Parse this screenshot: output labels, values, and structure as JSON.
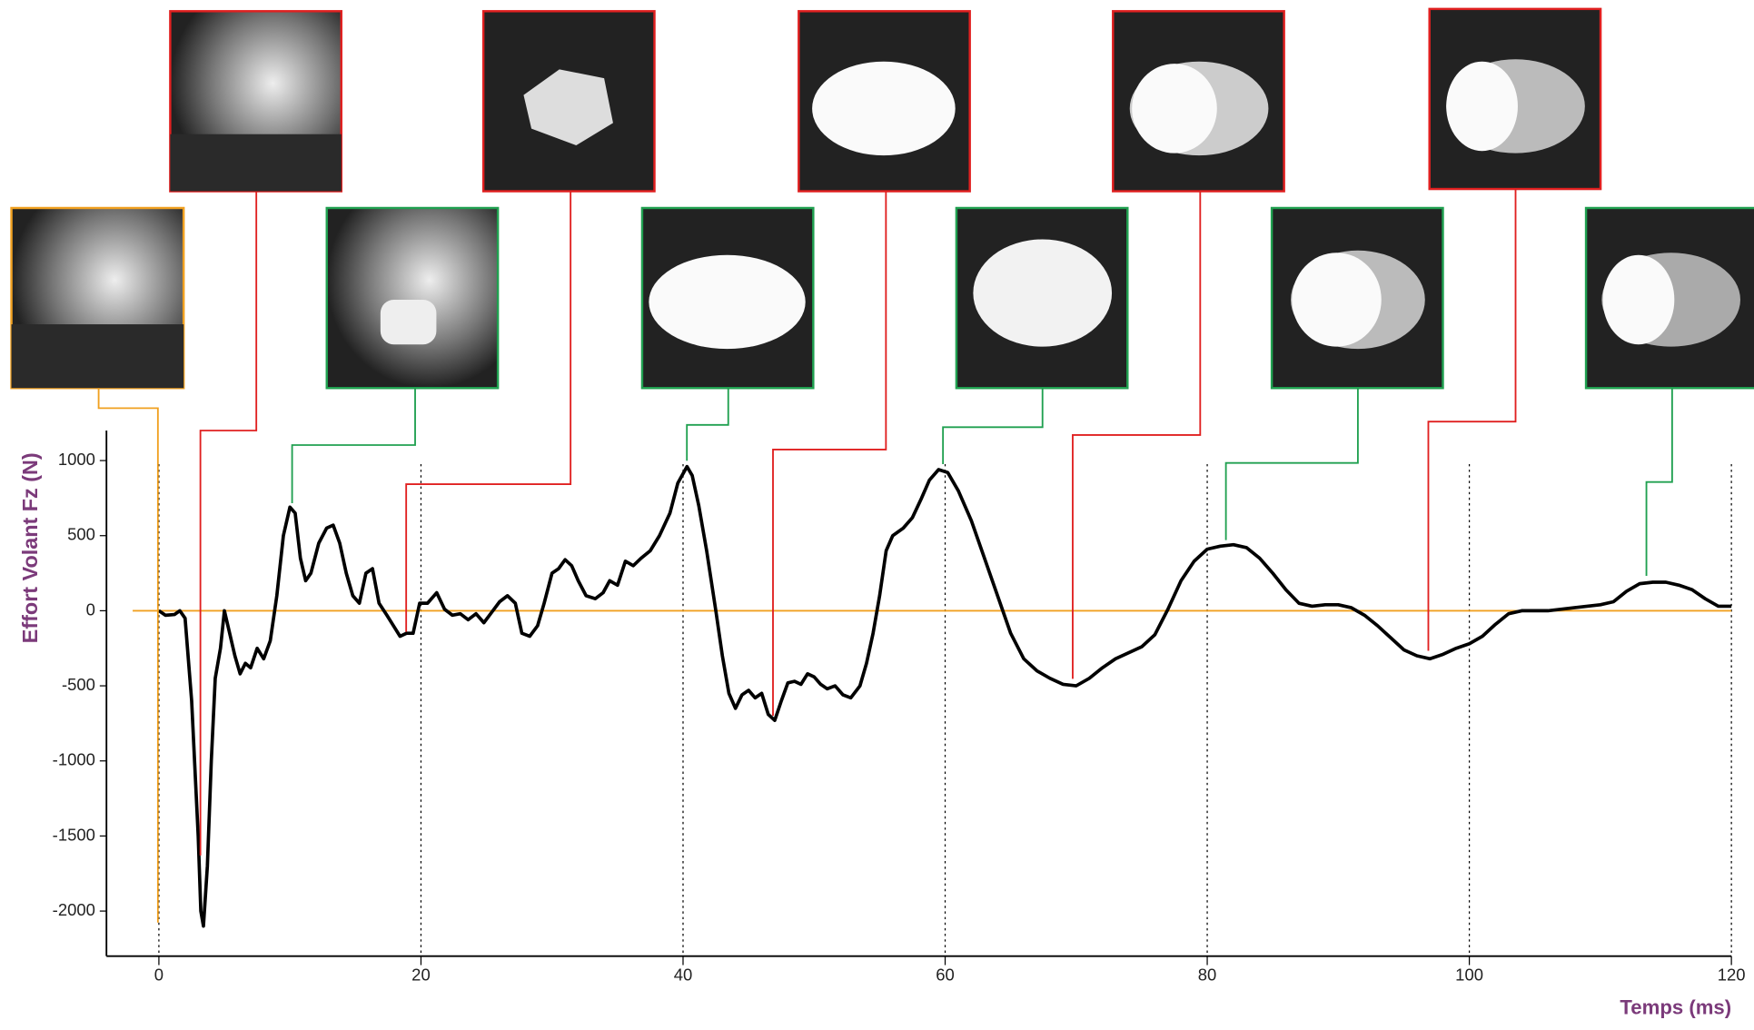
{
  "chart_data": {
    "type": "line",
    "y_label": "Effort Volant Fz (N)",
    "x_label": "Temps (ms)",
    "xlim": [
      -4,
      120
    ],
    "ylim": [
      -2300,
      1200
    ],
    "xticks": [
      0,
      20,
      40,
      60,
      80,
      100,
      120
    ],
    "yticks": [
      1000,
      500,
      0,
      -500,
      -1000,
      -1500,
      -2000
    ],
    "grid": true,
    "grid_color": "#000000",
    "reference_line": {
      "y": 0,
      "x_start": -2,
      "color": "#f0a020"
    },
    "x": [
      0,
      0.5,
      1.2,
      1.6,
      2.0,
      2.5,
      3.0,
      3.2,
      3.4,
      3.7,
      4.0,
      4.3,
      4.7,
      5.0,
      5.4,
      5.8,
      6.2,
      6.6,
      7.0,
      7.5,
      8.0,
      8.5,
      9.0,
      9.5,
      10.0,
      10.4,
      10.8,
      11.2,
      11.6,
      12.2,
      12.8,
      13.3,
      13.8,
      14.3,
      14.8,
      15.3,
      15.8,
      16.3,
      16.8,
      17.4,
      17.9,
      18.4,
      18.9,
      19.4,
      19.9,
      20.5,
      21.2,
      21.8,
      22.4,
      23.0,
      23.6,
      24.2,
      24.8,
      25.4,
      26.0,
      26.6,
      27.2,
      27.7,
      28.3,
      28.9,
      29.4,
      30.0,
      30.5,
      31.0,
      31.5,
      32.0,
      32.6,
      33.3,
      33.9,
      34.4,
      35.0,
      35.6,
      36.2,
      36.8,
      37.5,
      38.2,
      39.0,
      39.6,
      40.3,
      40.7,
      41.2,
      41.8,
      42.5,
      43.0,
      43.5,
      44.0,
      44.5,
      45.0,
      45.5,
      46.0,
      46.5,
      47.0,
      47.5,
      48.0,
      48.5,
      49.0,
      49.5,
      50.0,
      50.5,
      51.0,
      51.6,
      52.2,
      52.8,
      53.5,
      54.0,
      54.5,
      55.0,
      55.5,
      56.0,
      56.8,
      57.5,
      58.2,
      58.8,
      59.5,
      60.2,
      61.0,
      62.0,
      63.0,
      64.0,
      65.0,
      66.0,
      67.0,
      68.0,
      69.0,
      70.0,
      71.0,
      72.0,
      73.0,
      74.0,
      75.0,
      76.0,
      77.0,
      78.0,
      79.0,
      80.0,
      81.0,
      82.0,
      83.0,
      84.0,
      85.0,
      86.0,
      87.0,
      88.0,
      89.0,
      90.0,
      91.0,
      92.0,
      93.0,
      94.0,
      95.0,
      96.0,
      97.0,
      98.0,
      99.0,
      100.0,
      101.0,
      102.0,
      103.0,
      104.0,
      106.0,
      108.0,
      110.0,
      111.0,
      112.0,
      113.0,
      114.0,
      115.0,
      116.0,
      117.0,
      118.0,
      119.0,
      120.0
    ],
    "series": [
      {
        "color": "#000000",
        "values": [
          0,
          -30,
          -25,
          0,
          -50,
          -600,
          -1500,
          -2000,
          -2100,
          -1700,
          -1000,
          -450,
          -250,
          0,
          -150,
          -300,
          -420,
          -350,
          -380,
          -250,
          -320,
          -200,
          100,
          500,
          690,
          650,
          350,
          200,
          250,
          450,
          550,
          570,
          450,
          250,
          100,
          50,
          250,
          280,
          50,
          -30,
          -100,
          -170,
          -150,
          -150,
          50,
          50,
          120,
          10,
          -30,
          -20,
          -60,
          -20,
          -80,
          -10,
          60,
          100,
          50,
          -150,
          -170,
          -100,
          50,
          250,
          280,
          340,
          300,
          200,
          100,
          80,
          120,
          200,
          170,
          330,
          300,
          350,
          400,
          500,
          650,
          850,
          960,
          900,
          700,
          400,
          0,
          -300,
          -550,
          -650,
          -560,
          -530,
          -580,
          -550,
          -690,
          -730,
          -600,
          -480,
          -470,
          -490,
          -420,
          -440,
          -490,
          -520,
          -500,
          -560,
          -580,
          -500,
          -350,
          -150,
          100,
          400,
          500,
          550,
          620,
          750,
          870,
          940,
          920,
          800,
          600,
          350,
          100,
          -150,
          -320,
          -400,
          -450,
          -490,
          -500,
          -450,
          -380,
          -320,
          -280,
          -240,
          -160,
          10,
          200,
          330,
          410,
          430,
          440,
          420,
          350,
          250,
          140,
          50,
          30,
          40,
          40,
          20,
          -30,
          -100,
          -180,
          -260,
          -300,
          -320,
          -290,
          -250,
          -220,
          -170,
          -90,
          -20,
          0,
          0,
          20,
          40,
          60,
          130,
          180,
          190,
          190,
          170,
          140,
          80,
          30,
          30
        ]
      }
    ]
  }
}
